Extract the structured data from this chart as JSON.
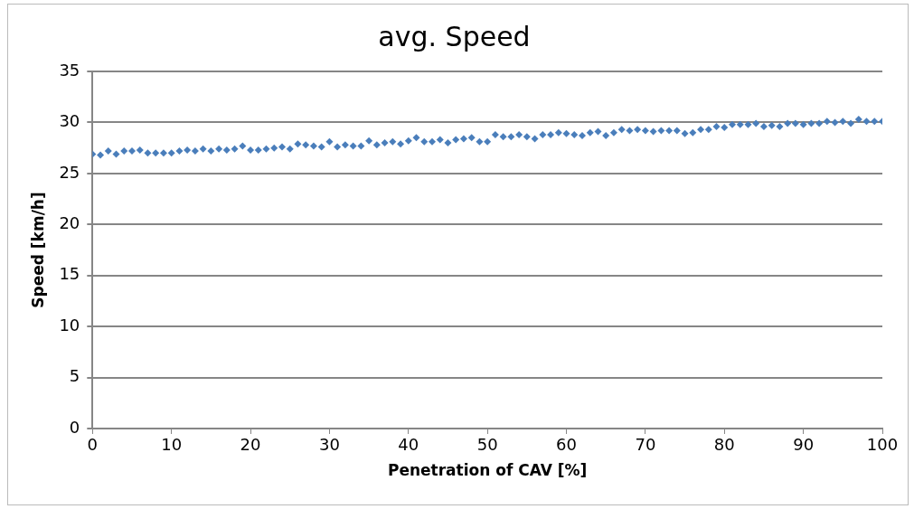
{
  "chart_data": {
    "type": "scatter",
    "title": "avg. Speed",
    "xlabel": "Penetration of CAV [%]",
    "ylabel": "Speed [km/h]",
    "x": [
      0,
      1,
      2,
      3,
      4,
      5,
      6,
      7,
      8,
      9,
      10,
      11,
      12,
      13,
      14,
      15,
      16,
      17,
      18,
      19,
      20,
      21,
      22,
      23,
      24,
      25,
      26,
      27,
      28,
      29,
      30,
      31,
      32,
      33,
      34,
      35,
      36,
      37,
      38,
      39,
      40,
      41,
      42,
      43,
      44,
      45,
      46,
      47,
      48,
      49,
      50,
      51,
      52,
      53,
      54,
      55,
      56,
      57,
      58,
      59,
      60,
      61,
      62,
      63,
      64,
      65,
      66,
      67,
      68,
      69,
      70,
      71,
      72,
      73,
      74,
      75,
      76,
      77,
      78,
      79,
      80,
      81,
      82,
      83,
      84,
      85,
      86,
      87,
      88,
      89,
      90,
      91,
      92,
      93,
      94,
      95,
      96,
      97,
      98,
      99,
      100
    ],
    "series": [
      {
        "color": "#4a7ebb",
        "values": [
          26.9,
          26.8,
          27.2,
          26.9,
          27.2,
          27.2,
          27.3,
          27.0,
          27.0,
          27.0,
          27.0,
          27.2,
          27.3,
          27.2,
          27.4,
          27.2,
          27.4,
          27.3,
          27.4,
          27.7,
          27.3,
          27.3,
          27.4,
          27.5,
          27.6,
          27.4,
          27.9,
          27.8,
          27.7,
          27.6,
          28.1,
          27.6,
          27.8,
          27.7,
          27.7,
          28.2,
          27.8,
          28.0,
          28.1,
          27.9,
          28.2,
          28.5,
          28.1,
          28.1,
          28.3,
          28.0,
          28.3,
          28.4,
          28.5,
          28.1,
          28.1,
          28.8,
          28.6,
          28.6,
          28.8,
          28.6,
          28.4,
          28.8,
          28.8,
          29.0,
          28.9,
          28.8,
          28.7,
          29.0,
          29.1,
          28.7,
          29.0,
          29.3,
          29.2,
          29.3,
          29.2,
          29.1,
          29.2,
          29.2,
          29.2,
          28.9,
          29.0,
          29.3,
          29.3,
          29.6,
          29.5,
          29.8,
          29.8,
          29.8,
          29.9,
          29.6,
          29.7,
          29.6,
          29.9,
          29.9,
          29.8,
          29.9,
          29.9,
          30.1,
          30.0,
          30.1,
          29.9,
          30.3,
          30.1,
          30.1,
          30.1
        ]
      }
    ],
    "xlim": [
      0,
      100
    ],
    "xticks": [
      0,
      10,
      20,
      30,
      40,
      50,
      60,
      70,
      80,
      90,
      100
    ],
    "ylim": [
      0,
      35
    ],
    "yticks": [
      0,
      5,
      10,
      15,
      20,
      25,
      30,
      35
    ],
    "grid": "y",
    "legend": false,
    "marker": "diamond"
  }
}
